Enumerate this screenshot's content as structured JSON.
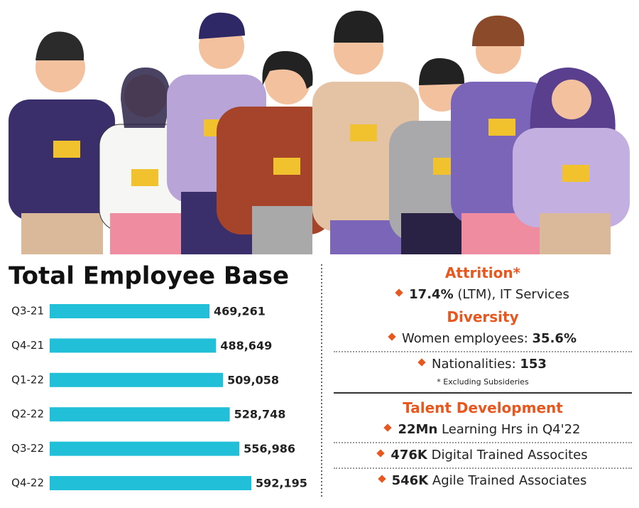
{
  "chart_data": {
    "type": "hbar",
    "title": "Total Employee Base",
    "categories": [
      "Q3-21",
      "Q4-21",
      "Q1-22",
      "Q2-22",
      "Q3-22",
      "Q4-22"
    ],
    "values": [
      469261,
      488649,
      509058,
      528748,
      556986,
      592195
    ],
    "value_labels": [
      "469,261",
      "488,649",
      "509,058",
      "528,748",
      "556,986",
      "592,195"
    ],
    "color": "#22bfd8"
  },
  "right": {
    "sections": [
      {
        "heading": "Attrition*",
        "items": [
          {
            "parts": [
              {
                "text": "17.4%",
                "bold": true
              },
              {
                "text": " (LTM), IT Services",
                "bold": false
              }
            ]
          }
        ]
      },
      {
        "heading": "Diversity",
        "items": [
          {
            "parts": [
              {
                "text": "Women employees: ",
                "bold": false
              },
              {
                "text": "35.6%",
                "bold": true
              }
            ]
          },
          {
            "parts": [
              {
                "text": "Nationalities: ",
                "bold": false
              },
              {
                "text": "153",
                "bold": true
              }
            ]
          }
        ]
      },
      {
        "heading": "Talent Development",
        "items": [
          {
            "parts": [
              {
                "text": "22Mn",
                "bold": true
              },
              {
                "text": " Learning Hrs in Q4'22",
                "bold": false
              }
            ]
          },
          {
            "parts": [
              {
                "text": "476K",
                "bold": true
              },
              {
                "text": " Digital Trained Assocites",
                "bold": false
              }
            ]
          },
          {
            "parts": [
              {
                "text": "546K",
                "bold": true
              },
              {
                "text": " Agile Trained Associates",
                "bold": false
              }
            ]
          }
        ]
      }
    ],
    "footnote": "* Excluding Subsideries"
  }
}
